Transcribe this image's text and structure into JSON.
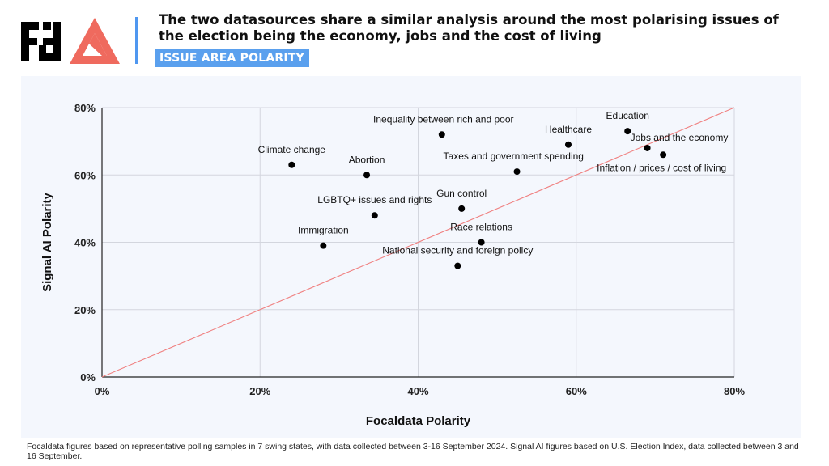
{
  "header": {
    "headline": "The two datasources share a similar analysis around the most polarising issues of the election being the economy, jobs and the cost of living",
    "tag": "ISSUE AREA POLARITY"
  },
  "colors": {
    "accent_blue": "#5aa0ee",
    "divider_blue": "#4f97f0",
    "logo_red": "#ef6a5e",
    "diagonal_line": "#f08080",
    "point": "#000000",
    "panel_bg": "#f4f7fd"
  },
  "icons": [
    "focaldata-logo-icon",
    "signal-ai-logo-icon"
  ],
  "chart_data": {
    "type": "scatter",
    "xlabel": "Focaldata Polarity",
    "ylabel": "Signal AI Polarity",
    "xlim": [
      0,
      80
    ],
    "ylim": [
      0,
      80
    ],
    "x_ticks": [
      0,
      20,
      40,
      60,
      80
    ],
    "y_ticks": [
      0,
      20,
      40,
      60,
      80
    ],
    "x_tick_labels": [
      "0%",
      "20%",
      "40%",
      "60%",
      "80%"
    ],
    "y_tick_labels": [
      "0%",
      "20%",
      "40%",
      "60%",
      "80%"
    ],
    "grid": true,
    "reference_line": "y = x",
    "points": [
      {
        "label": "Climate change",
        "x": 24,
        "y": 63
      },
      {
        "label": "Abortion",
        "x": 33.5,
        "y": 60
      },
      {
        "label": "Inequality between rich and poor",
        "x": 43,
        "y": 72
      },
      {
        "label": "Healthcare",
        "x": 59,
        "y": 69
      },
      {
        "label": "Education",
        "x": 66.5,
        "y": 73
      },
      {
        "label": "Jobs and the economy",
        "x": 69,
        "y": 68
      },
      {
        "label": "Inflation / prices / cost of living",
        "x": 71,
        "y": 66
      },
      {
        "label": "Taxes and government spending",
        "x": 52.5,
        "y": 61
      },
      {
        "label": "LGBTQ+ issues and rights",
        "x": 34.5,
        "y": 48
      },
      {
        "label": "Gun control",
        "x": 45.5,
        "y": 50
      },
      {
        "label": "Immigration",
        "x": 28,
        "y": 39
      },
      {
        "label": "Race relations",
        "x": 48,
        "y": 40
      },
      {
        "label": "National security and foreign policy",
        "x": 45,
        "y": 33
      }
    ]
  },
  "footnote": "Focaldata figures based on representative polling samples in 7 swing states, with data collected between 3-16 September 2024. Signal AI figures based on U.S. Election Index, data collected between 3 and 16 September."
}
